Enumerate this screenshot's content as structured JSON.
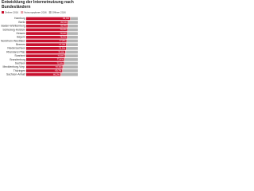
{
  "chart_data": {
    "type": "stacked-bar-horizontal",
    "title": "Entwicklung der Internetnutzung nach Bundesländern",
    "categories": [
      "Hamburg",
      "Berlin",
      "Baden-Württemberg",
      "Schleswig-Holstein",
      "Hessen",
      "Bayern",
      "Nordrhein-Westfalen",
      "Bremen",
      "Niedersachsen",
      "Rheinland-Pfalz",
      "Saarland",
      "Brandenburg",
      "Sachsen",
      "Mecklenburg-Vorp.",
      "Thüringen",
      "Sachsen-Anhalt"
    ],
    "series": [
      {
        "name": "Onliner 2016",
        "color": "#c8102e",
        "values": [
          84.9,
          80.5,
          80.4,
          79.2,
          79.0,
          78.9,
          77.8,
          77.3,
          76.9,
          75.6,
          74.6,
          73.4,
          72.9,
          70.3,
          69.7,
          66.2
        ],
        "value_labels": [
          "84,9%",
          "80,5%",
          "80,4%",
          "79,2%",
          "79,0%",
          "78,9%",
          "77,8%",
          "77,3%",
          "76,9%",
          "75,6%",
          "74,6%",
          "73,4%",
          "72,9%",
          "70,3%",
          "69,7%",
          "66,2%"
        ]
      },
      {
        "name": "Nutzungsplaner 2016",
        "color": "#e8a0a6",
        "values": [
          1.3,
          1.8,
          1.5,
          1.6,
          1.4,
          1.7,
          1.9,
          2.0,
          1.6,
          1.8,
          2.1,
          1.9,
          1.7,
          2.2,
          1.8,
          2.3
        ]
      },
      {
        "name": "Offliner 2016",
        "color": "#b4b4b4",
        "values": [
          13.8,
          17.7,
          18.1,
          19.2,
          19.6,
          19.4,
          20.3,
          20.7,
          21.5,
          22.6,
          23.3,
          24.7,
          25.4,
          27.5,
          28.5,
          31.5
        ]
      }
    ],
    "xlim": [
      0,
      100
    ]
  }
}
